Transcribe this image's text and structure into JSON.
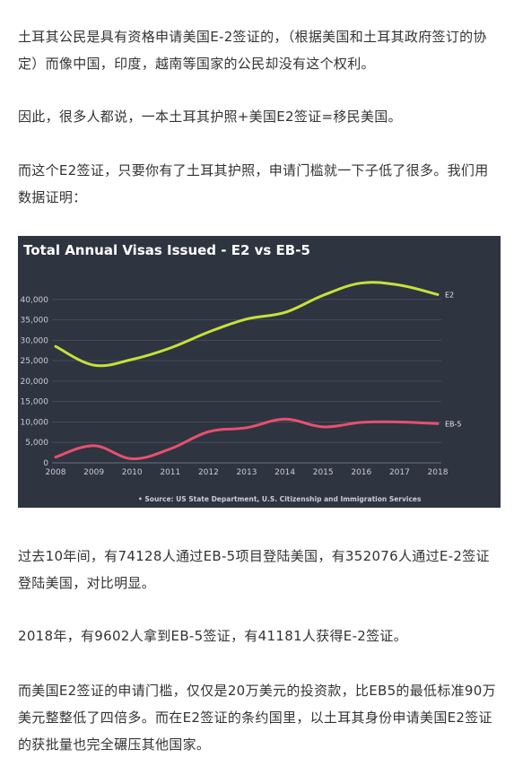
{
  "article": {
    "p1": {
      "line1": "土耳其公民是具有资格申请美国E-2签证的，（根据美国和土耳其政府签订的协",
      "line2": "定）而像中国，印度，越南等国家的公民却没有这个权利。"
    },
    "p2": {
      "line1": "因此，很多人都说，一本土耳其护照+美国E2签证=移民美国。"
    },
    "p3": {
      "line1": "而这个E2签证，只要你有了土耳其护照，申请门槛就一下子低了很多。我们用",
      "line2": "数据证明："
    },
    "p4": {
      "line1": "过去10年间，有74128人通过EB-5项目登陆美国，有352076人通过E-2签证",
      "line2": "登陆美国，对比明显。"
    },
    "p5": {
      "line1": "2018年，有9602人拿到EB-5签证，有41181人获得E-2签证。"
    },
    "p6": {
      "line1": "而美国E2签证的申请门槛，仅仅是20万美元的投资款，比EB5的最低标准90万",
      "line2": "美元整整低了四倍多。而在E2签证的条约国里，以土耳其身份申请美国E2签证",
      "line3": "的获批量也完全碾压其他国家。"
    }
  },
  "chart_data": {
    "type": "line",
    "title": "Total Annual Visas Issued - E2 vs EB-5",
    "source": "• Source: US State Department, U.S. Citizenship and Immigration Services",
    "x": [
      2008,
      2009,
      2010,
      2011,
      2012,
      2013,
      2014,
      2015,
      2016,
      2017,
      2018
    ],
    "x_tick_labels": [
      "2008",
      "2009",
      "2010",
      "2011",
      "2012",
      "2013",
      "2014",
      "2015",
      "2016",
      "2017",
      "2018"
    ],
    "y_ticks": [
      0,
      5000,
      10000,
      15000,
      20000,
      25000,
      30000,
      35000,
      40000
    ],
    "y_tick_labels": [
      "0",
      "5,000",
      "10,000",
      "15,000",
      "20,000",
      "25,000",
      "30,000",
      "35,000",
      "40,000"
    ],
    "ylim": [
      0,
      45000
    ],
    "grid": true,
    "legend": "inline labels at line ends",
    "series": [
      {
        "name": "E2",
        "color": "#c8e03c",
        "values": [
          28500,
          23900,
          25300,
          28100,
          32000,
          35200,
          36800,
          41000,
          44000,
          43500,
          41181
        ]
      },
      {
        "name": "EB-5",
        "color": "#e8506e",
        "values": [
          1400,
          4200,
          1000,
          3400,
          7600,
          8600,
          10700,
          8800,
          9900,
          10000,
          9602
        ]
      }
    ]
  }
}
